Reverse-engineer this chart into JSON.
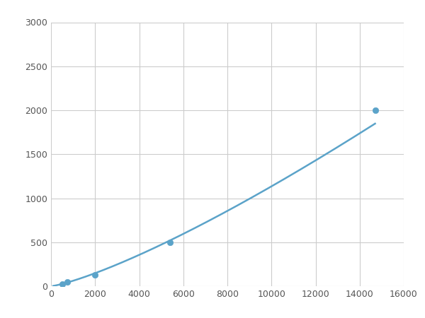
{
  "x_points": [
    500,
    750,
    2000,
    5400,
    14700
  ],
  "y_points": [
    25,
    50,
    125,
    500,
    2000
  ],
  "line_color": "#5BA3C9",
  "marker_color": "#5BA3C9",
  "marker_size": 6,
  "line_width": 1.8,
  "xlim": [
    0,
    16000
  ],
  "ylim": [
    0,
    3000
  ],
  "xticks": [
    0,
    2000,
    4000,
    6000,
    8000,
    10000,
    12000,
    14000,
    16000
  ],
  "yticks": [
    0,
    500,
    1000,
    1500,
    2000,
    2500,
    3000
  ],
  "grid_color": "#cccccc",
  "background_color": "#ffffff",
  "figsize": [
    6.0,
    4.5
  ],
  "dpi": 100
}
